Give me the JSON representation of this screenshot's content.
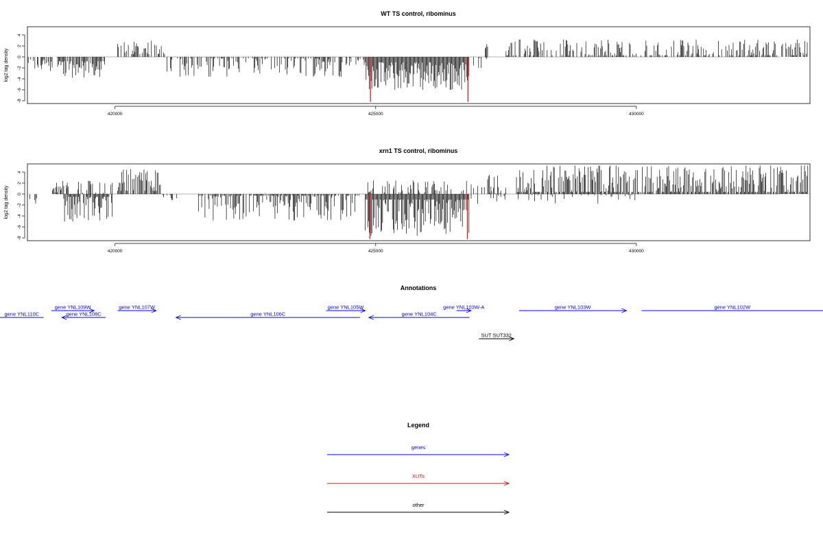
{
  "chart_data": [
    {
      "type": "bar",
      "title": "WT TS control, ribominus",
      "xlabel": "",
      "ylabel": "log2 tag density",
      "xlim": [
        418320,
        433330
      ],
      "ylim": [
        -8.5,
        5.5
      ],
      "x_ticks": [
        420000,
        425000,
        430000
      ],
      "x_tick_labels": [
        "420000",
        "425000",
        "430000"
      ],
      "y_ticks": [
        -8,
        -6,
        -4,
        -2,
        0,
        2,
        4
      ],
      "y_tick_labels": [
        "-8",
        "-6",
        "-4",
        "-2",
        "0",
        "2",
        "4"
      ],
      "series_color": "#000000",
      "highlight_color": "#ff0000",
      "segments": [
        {
          "from": 418320,
          "to": 418800,
          "mean": -1.4,
          "min": -2.6,
          "max": -0.5,
          "density": 0.5
        },
        {
          "from": 418800,
          "to": 418900,
          "mean": 0.6,
          "min": 0.3,
          "max": 1.0,
          "density": 0.2
        },
        {
          "from": 418900,
          "to": 419800,
          "mean": -2.0,
          "min": -3.8,
          "max": -0.8,
          "density": 0.8
        },
        {
          "from": 420050,
          "to": 420950,
          "mean": 1.6,
          "min": 0.5,
          "max": 3.0,
          "density": 0.7
        },
        {
          "from": 420950,
          "to": 421100,
          "mean": -1.5,
          "min": -2.8,
          "max": -0.5,
          "density": 0.4
        },
        {
          "from": 421200,
          "to": 424400,
          "mean": -1.3,
          "min": -3.6,
          "max": -0.3,
          "density": 0.55
        },
        {
          "from": 424400,
          "to": 424800,
          "mean": -0.8,
          "min": -1.6,
          "max": -0.2,
          "density": 0.3
        },
        {
          "from": 424800,
          "to": 426800,
          "mean": -3.2,
          "min": -6.0,
          "max": -1.0,
          "density": 1.0
        },
        {
          "from": 426800,
          "to": 427150,
          "mean": -0.8,
          "min": -2.0,
          "max": -0.2,
          "density": 0.2
        },
        {
          "from": 427100,
          "to": 427150,
          "mean": 1.8,
          "min": 1.5,
          "max": 2.4,
          "density": 1.0
        },
        {
          "from": 427500,
          "to": 433300,
          "mean": 1.3,
          "min": 0.3,
          "max": 3.2,
          "density": 0.55
        }
      ],
      "highlight_bars": [
        {
          "x": 424900,
          "value": -8.2
        },
        {
          "x": 426770,
          "value": -8.2
        }
      ]
    },
    {
      "type": "bar",
      "title": "xrn1 TS control, ribominus",
      "xlabel": "",
      "ylabel": "log2 tag density",
      "xlim": [
        418320,
        433330
      ],
      "ylim": [
        -8.5,
        5.5
      ],
      "x_ticks": [
        420000,
        425000,
        430000
      ],
      "x_tick_labels": [
        "420000",
        "425000",
        "430000"
      ],
      "y_ticks": [
        -8,
        -6,
        -4,
        -2,
        0,
        2,
        4
      ],
      "y_tick_labels": [
        "-8",
        "-6",
        "-4",
        "-2",
        "0",
        "2",
        "4"
      ],
      "series_color": "#000000",
      "highlight_color": "#ff0000",
      "segments": [
        {
          "from": 418320,
          "to": 418500,
          "mean": -1.2,
          "min": -1.9,
          "max": -0.4,
          "density": 0.5
        },
        {
          "from": 418800,
          "to": 419100,
          "mean": 1.0,
          "min": 0.3,
          "max": 2.2,
          "density": 0.7
        },
        {
          "from": 419000,
          "to": 419950,
          "mean": -2.3,
          "min": -5.0,
          "max": -0.5,
          "density": 0.9
        },
        {
          "from": 419000,
          "to": 419950,
          "mean": 1.2,
          "min": 0.2,
          "max": 2.4,
          "density": 0.3
        },
        {
          "from": 420050,
          "to": 420900,
          "mean": 2.0,
          "min": 0.6,
          "max": 4.6,
          "density": 0.9
        },
        {
          "from": 420900,
          "to": 421200,
          "mean": -0.6,
          "min": -1.2,
          "max": -0.2,
          "density": 0.4
        },
        {
          "from": 421600,
          "to": 424700,
          "mean": -1.6,
          "min": -4.8,
          "max": -0.3,
          "density": 0.75
        },
        {
          "from": 424800,
          "to": 426800,
          "mean": -3.6,
          "min": -7.6,
          "max": -1.0,
          "density": 1.0
        },
        {
          "from": 424800,
          "to": 426800,
          "mean": 1.2,
          "min": 0.3,
          "max": 2.5,
          "density": 0.35
        },
        {
          "from": 426800,
          "to": 427500,
          "mean": 1.0,
          "min": 0.2,
          "max": 3.5,
          "density": 0.4
        },
        {
          "from": 426800,
          "to": 427500,
          "mean": -1.0,
          "min": -2.0,
          "max": -0.2,
          "density": 0.2
        },
        {
          "from": 427700,
          "to": 433300,
          "mean": 1.8,
          "min": 0.4,
          "max": 5.2,
          "density": 0.85
        },
        {
          "from": 427700,
          "to": 430000,
          "mean": -0.6,
          "min": -1.8,
          "max": -0.2,
          "density": 0.15
        }
      ],
      "highlight_bars": [
        {
          "x": 424890,
          "value": -8.2
        },
        {
          "x": 426760,
          "value": -8.2
        }
      ]
    }
  ],
  "annotations": {
    "title": "Annotations",
    "features": [
      {
        "label": "gene YNL110C",
        "from": 418630,
        "to": 417760,
        "strand": "-",
        "row": 1,
        "kind": "gene"
      },
      {
        "label": "gene YNL109W",
        "from": 418780,
        "to": 419600,
        "strand": "+",
        "row": 0,
        "kind": "gene"
      },
      {
        "label": "gene YNL108C",
        "from": 419820,
        "to": 418980,
        "strand": "-",
        "row": 1,
        "kind": "gene"
      },
      {
        "label": "gene YNL107W",
        "from": 420050,
        "to": 420790,
        "strand": "+",
        "row": 0,
        "kind": "gene"
      },
      {
        "label": "gene YNL106C",
        "from": 424700,
        "to": 421170,
        "strand": "-",
        "row": 1,
        "kind": "gene"
      },
      {
        "label": "gene YNL105W",
        "from": 424050,
        "to": 424800,
        "strand": "+",
        "row": 0,
        "kind": "gene"
      },
      {
        "label": "gene YNL104C",
        "from": 426800,
        "to": 424870,
        "strand": "-",
        "row": 1,
        "kind": "gene"
      },
      {
        "label": "gene YNL103W-A",
        "from": 426550,
        "to": 426830,
        "strand": "+",
        "row": 0,
        "kind": "gene"
      },
      {
        "label": "gene YNL103W",
        "from": 427750,
        "to": 429810,
        "strand": "+",
        "row": 0,
        "kind": "gene"
      },
      {
        "label": "gene YNL102W",
        "from": 430100,
        "to": 434000,
        "strand": "+",
        "row": 0,
        "kind": "gene"
      },
      {
        "label": "SUT SUT332",
        "from": 426980,
        "to": 427650,
        "strand": "+",
        "row": 3,
        "kind": "other"
      }
    ]
  },
  "legend": {
    "title": "Legend",
    "items": [
      {
        "label": "genes",
        "color": "#0000ff"
      },
      {
        "label": "XUTs",
        "color": "#ff0000"
      },
      {
        "label": "other",
        "color": "#000000"
      }
    ]
  },
  "colors": {
    "genes": "#0000ff",
    "XUTs": "#ff0000",
    "other": "#000000",
    "zero_line": "#999999"
  }
}
